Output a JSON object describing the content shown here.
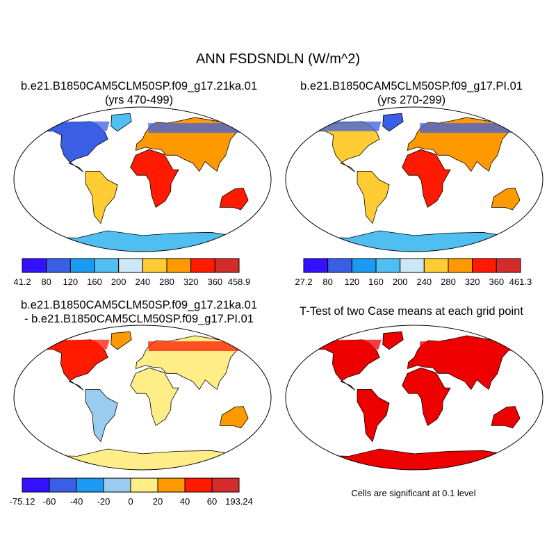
{
  "title": "ANN FSDSNDLN (W/m^2)",
  "panels": [
    {
      "id": "case1",
      "title_line1": "b.e21.B1850CAM5CLM50SP.f09_g17.21ka.01",
      "title_line2": "(yrs 470-499)",
      "colorbar": {
        "colors": [
          "#3311ff",
          "#3b5fe4",
          "#1a9af0",
          "#4fbef0",
          "#cce8f6",
          "#ffcc33",
          "#ff9900",
          "#ff1a00",
          "#d42b2b"
        ],
        "labels": [
          "41.2",
          "80",
          "120",
          "160",
          "200",
          "240",
          "280",
          "320",
          "360",
          "458.9"
        ]
      }
    },
    {
      "id": "case2",
      "title_line1": "b.e21.B1850CAM5CLM50SP.f09_g17.PI.01",
      "title_line2": "(yrs 270-299)",
      "colorbar": {
        "colors": [
          "#3311ff",
          "#3b5fe4",
          "#1a9af0",
          "#4fbef0",
          "#cce8f6",
          "#ffcc33",
          "#ff9900",
          "#ff1a00",
          "#d42b2b"
        ],
        "labels": [
          "27.2",
          "80",
          "120",
          "160",
          "200",
          "240",
          "280",
          "320",
          "360",
          "461.3"
        ]
      }
    },
    {
      "id": "diff",
      "title_line1": "b.e21.B1850CAM5CLM50SP.f09_g17.21ka.01",
      "title_line2": "- b.e21.B1850CAM5CLM50SP.f09_g17.PI.01",
      "colorbar": {
        "colors": [
          "#3311ff",
          "#3b5fe4",
          "#1a9af0",
          "#99ccee",
          "#ffee88",
          "#ff9900",
          "#ff1a00",
          "#d42b2b"
        ],
        "labels": [
          "-75.12",
          "-60",
          "-40",
          "-20",
          "0",
          "20",
          "40",
          "60",
          "193.24"
        ]
      }
    },
    {
      "id": "ttest",
      "title_line1": "T-Test of two Case means at each grid point",
      "title_line2": "",
      "note": "Cells are significant at 0.1 level"
    }
  ],
  "palette": {
    "case_low": "#3b5fe4",
    "case_cold": "#4fbef0",
    "case_mid": "#ffcc33",
    "case_warm": "#ff9900",
    "case_hot": "#ff1a00",
    "case_max": "#d42b2b",
    "diff_neutral": "#ffee88",
    "diff_neg": "#99ccee",
    "ttest_sig": "#ee0000"
  }
}
